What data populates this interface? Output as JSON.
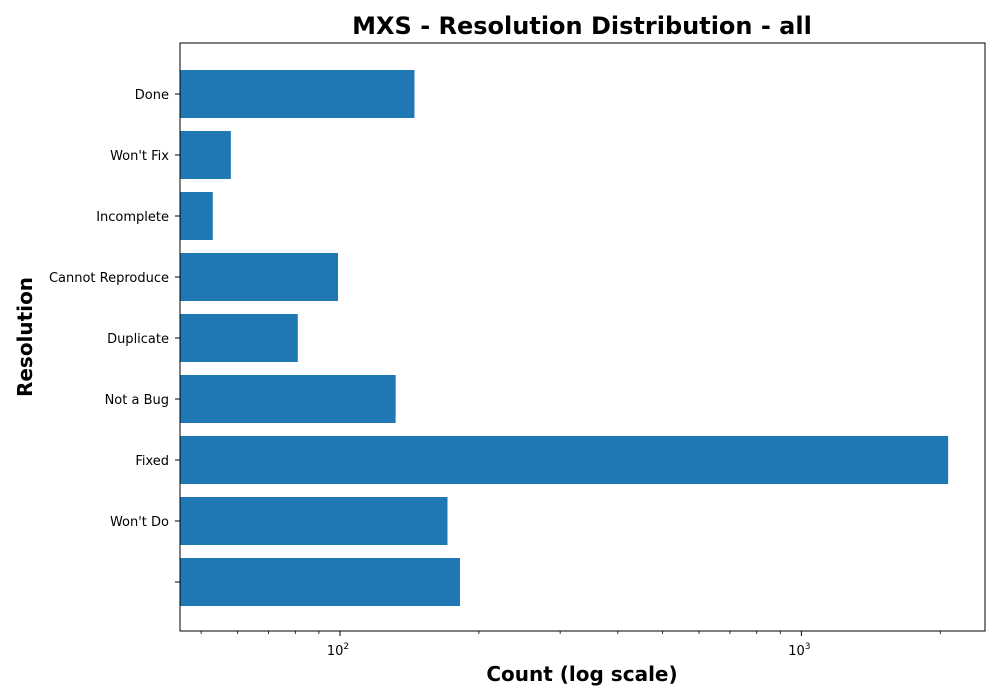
{
  "chart_data": {
    "type": "bar",
    "orientation": "horizontal",
    "title": "MXS - Resolution Distribution - all",
    "xlabel": "Count (log scale)",
    "ylabel": "Resolution",
    "x_scale": "log",
    "xlim": [
      45,
      2500
    ],
    "x_ticks": [
      {
        "value": 100,
        "base": "10",
        "exp": "2"
      },
      {
        "value": 1000,
        "base": "10",
        "exp": "3"
      }
    ],
    "categories": [
      "Done",
      "Won't Fix",
      "Incomplete",
      "Cannot Reproduce",
      "Duplicate",
      "Not a Bug",
      "Fixed",
      "Won't Do",
      ""
    ],
    "values": [
      145,
      58,
      53,
      99,
      81,
      132,
      2080,
      171,
      182
    ],
    "bar_color": "#1f77b4",
    "grid": false,
    "legend": "none"
  }
}
